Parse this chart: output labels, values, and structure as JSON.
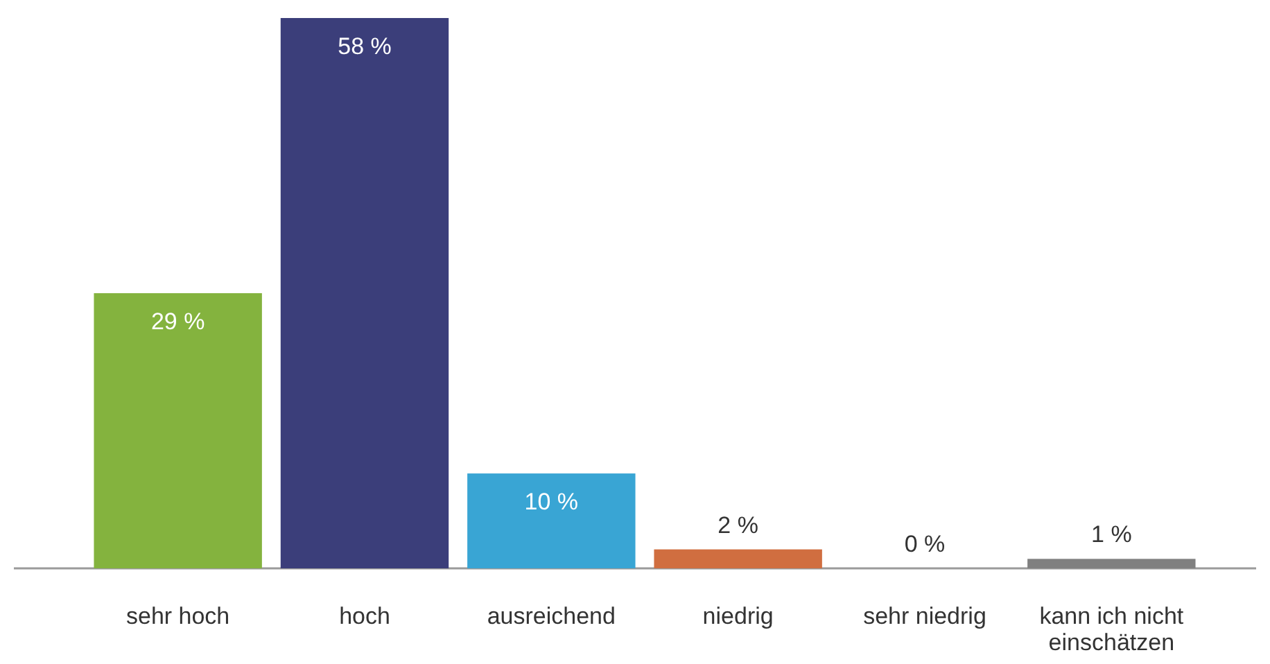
{
  "chart_data": {
    "type": "bar",
    "categories": [
      "sehr hoch",
      "hoch",
      "ausreichend",
      "niedrig",
      "sehr niedrig",
      "kann ich nicht einschätzen"
    ],
    "values": [
      29,
      58,
      10,
      2,
      0,
      1
    ],
    "colors": [
      "#84b33e",
      "#3b3e7a",
      "#39a5d4",
      "#d06e40",
      null,
      "#808080"
    ],
    "value_labels": [
      "29 %",
      "58 %",
      "10 %",
      "2 %",
      "0 %",
      "1 %"
    ]
  }
}
